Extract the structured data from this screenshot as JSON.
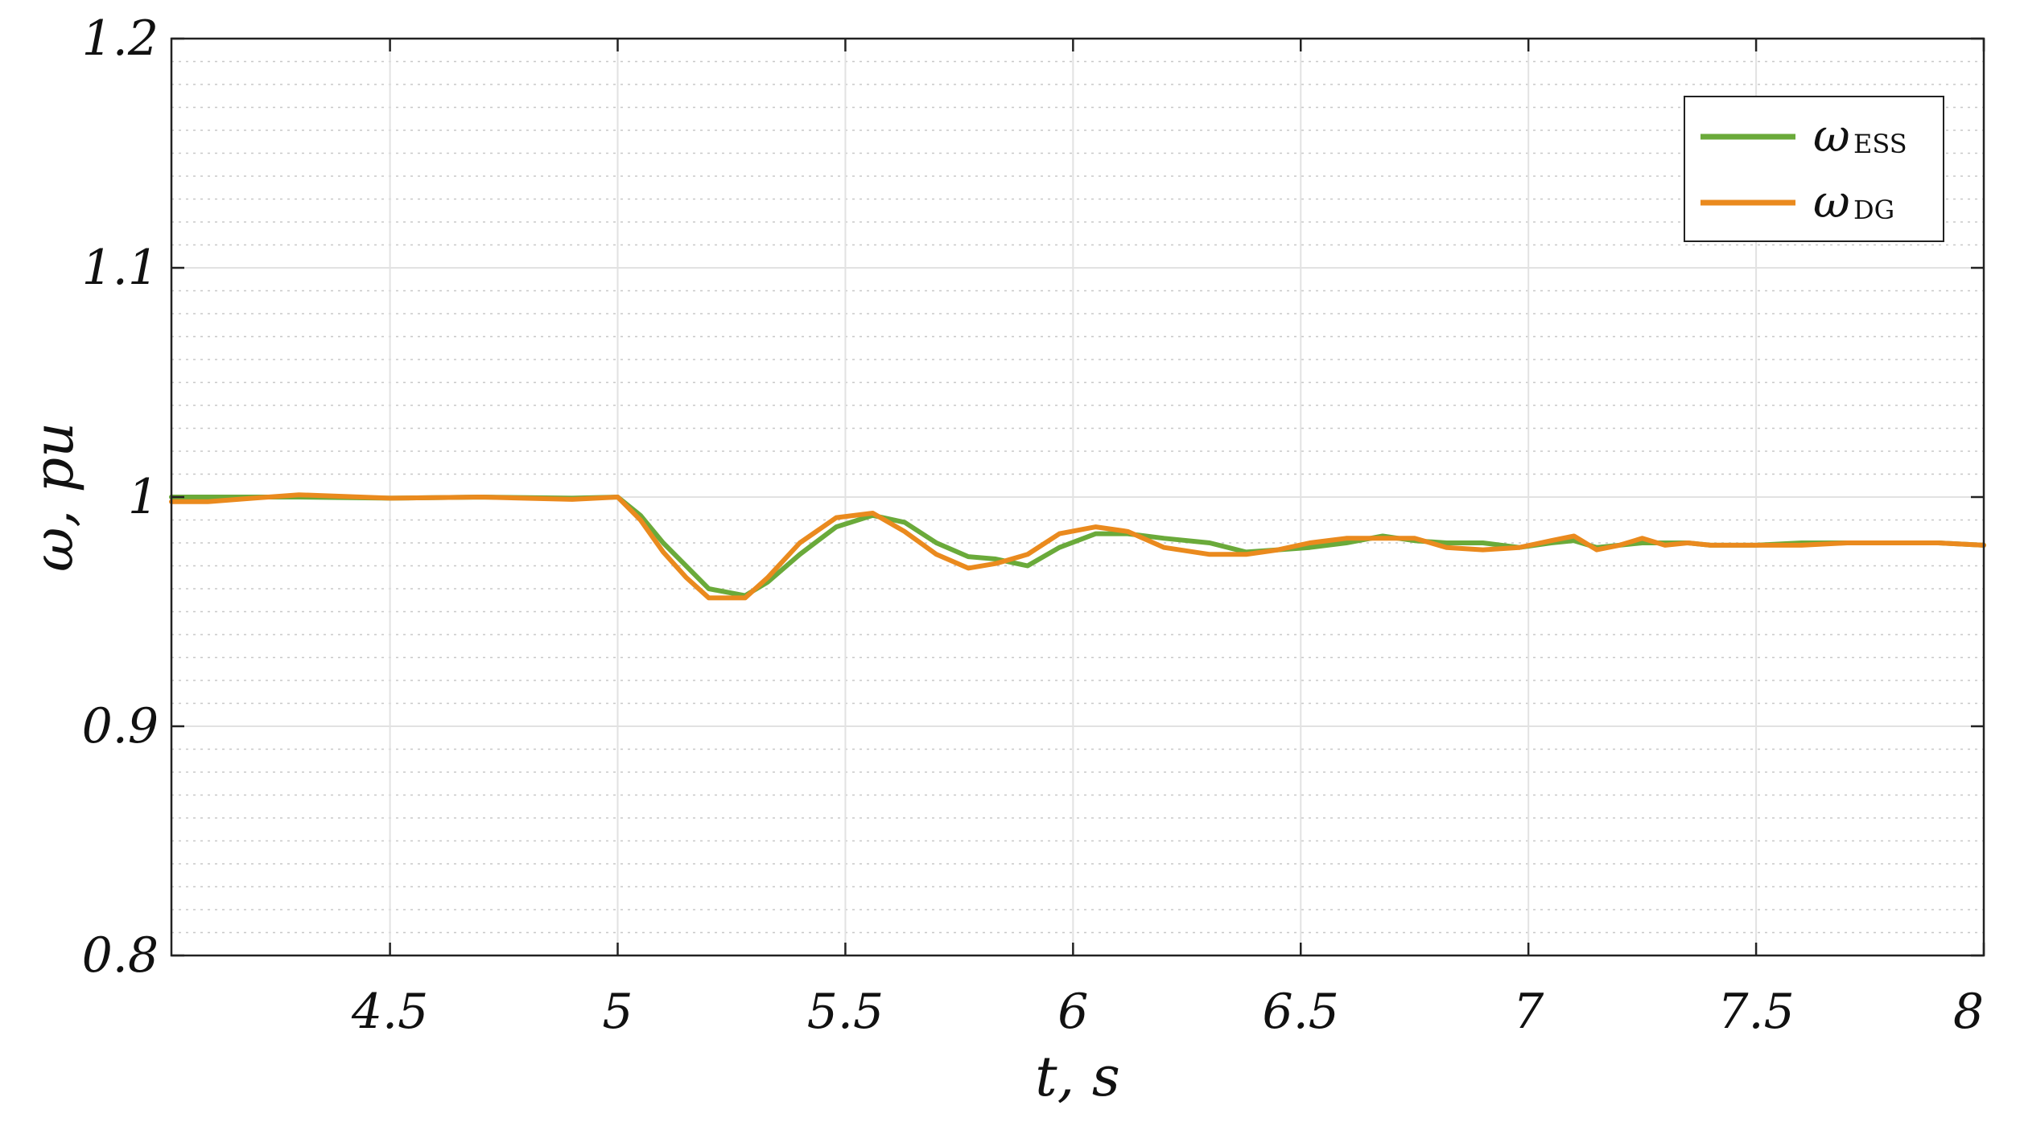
{
  "chart_data": {
    "type": "line",
    "title": "",
    "xlabel": "t, s",
    "ylabel": "ω, pu",
    "xlim": [
      4.02,
      8.0
    ],
    "ylim": [
      0.8,
      1.2
    ],
    "xticks": [
      "4.5",
      "5",
      "5.5",
      "6",
      "6.5",
      "7",
      "7.5",
      "8"
    ],
    "yticks": [
      "0.8",
      "0.9",
      "1",
      "1.1",
      "1.2"
    ],
    "grid": true,
    "minor_grid_y": true,
    "legend_position": "top-right",
    "series": [
      {
        "name": "ω",
        "subscript": "ESS",
        "color": "#6aaa3a",
        "x": [
          4.02,
          4.3,
          4.5,
          4.7,
          4.9,
          5.0,
          5.05,
          5.1,
          5.15,
          5.2,
          5.28,
          5.33,
          5.4,
          5.48,
          5.56,
          5.63,
          5.7,
          5.77,
          5.83,
          5.9,
          5.97,
          6.05,
          6.12,
          6.2,
          6.3,
          6.38,
          6.45,
          6.52,
          6.6,
          6.68,
          6.75,
          6.82,
          6.9,
          6.98,
          7.05,
          7.1,
          7.15,
          7.2,
          7.25,
          7.3,
          7.35,
          7.4,
          7.5,
          7.6,
          7.7,
          7.8,
          7.9,
          8.0
        ],
        "y": [
          1.0,
          1.0,
          0.9995,
          1.0,
          0.9995,
          1.0,
          0.992,
          0.98,
          0.97,
          0.96,
          0.957,
          0.963,
          0.975,
          0.987,
          0.992,
          0.989,
          0.98,
          0.974,
          0.973,
          0.97,
          0.978,
          0.984,
          0.984,
          0.982,
          0.98,
          0.976,
          0.977,
          0.978,
          0.98,
          0.983,
          0.981,
          0.98,
          0.98,
          0.978,
          0.98,
          0.981,
          0.978,
          0.979,
          0.98,
          0.98,
          0.98,
          0.979,
          0.979,
          0.98,
          0.98,
          0.98,
          0.98,
          0.979
        ]
      },
      {
        "name": "ω",
        "subscript": "DG",
        "color": "#ea8a1e",
        "x": [
          4.02,
          4.1,
          4.2,
          4.3,
          4.5,
          4.7,
          4.9,
          5.0,
          5.05,
          5.1,
          5.15,
          5.2,
          5.28,
          5.33,
          5.4,
          5.48,
          5.56,
          5.63,
          5.7,
          5.77,
          5.83,
          5.9,
          5.97,
          6.05,
          6.12,
          6.2,
          6.3,
          6.38,
          6.45,
          6.52,
          6.6,
          6.68,
          6.75,
          6.82,
          6.9,
          6.98,
          7.05,
          7.1,
          7.15,
          7.2,
          7.25,
          7.3,
          7.35,
          7.4,
          7.5,
          7.6,
          7.7,
          7.8,
          7.9,
          8.0
        ],
        "y": [
          0.998,
          0.998,
          0.9995,
          1.001,
          0.9995,
          1.0,
          0.999,
          1.0,
          0.99,
          0.976,
          0.965,
          0.956,
          0.956,
          0.965,
          0.98,
          0.991,
          0.993,
          0.985,
          0.975,
          0.969,
          0.971,
          0.975,
          0.984,
          0.987,
          0.985,
          0.978,
          0.975,
          0.975,
          0.977,
          0.98,
          0.982,
          0.982,
          0.982,
          0.978,
          0.977,
          0.978,
          0.981,
          0.983,
          0.977,
          0.979,
          0.982,
          0.979,
          0.98,
          0.979,
          0.979,
          0.979,
          0.98,
          0.98,
          0.98,
          0.979
        ]
      }
    ]
  }
}
